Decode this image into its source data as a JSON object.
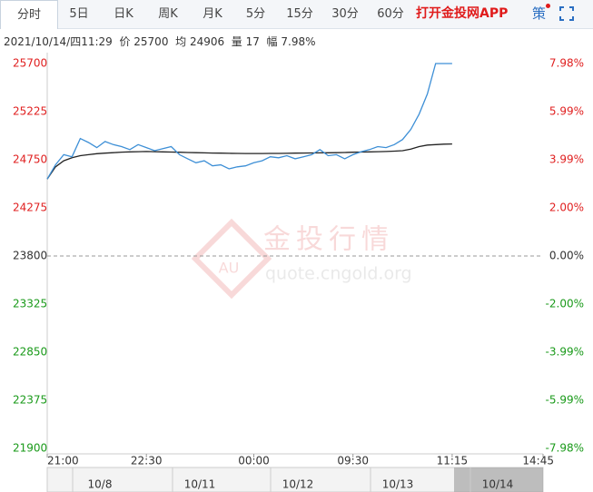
{
  "tabs": [
    "分时",
    "5日",
    "日K",
    "周K",
    "月K",
    "5分",
    "15分",
    "30分",
    "60分"
  ],
  "promo": "打开金投网APP",
  "strategy": "策",
  "info": {
    "time": "2021/10/14/四11:29",
    "price_label": "价",
    "price": 25700,
    "avg_label": "均",
    "avg": 24906,
    "vol_label": "量",
    "vol": 17,
    "amp_label": "幅",
    "amp": "7.98%"
  },
  "watermark": {
    "brand": "金投行情",
    "url": "quote.cngold.org",
    "logo": "AU"
  },
  "navigator": {
    "dates": [
      "10/8",
      "10/11",
      "10/12",
      "10/13",
      "10/14"
    ]
  },
  "chart_data": {
    "type": "line",
    "x": [
      0,
      1,
      2,
      3,
      4,
      5,
      6,
      7,
      8,
      9,
      10,
      11,
      12,
      13,
      14,
      15,
      16,
      17,
      18,
      19,
      20,
      21,
      22,
      23,
      24,
      25,
      26,
      27,
      28,
      29,
      30,
      31,
      32,
      33,
      34,
      35,
      36,
      37,
      38,
      39,
      40,
      41,
      42,
      43,
      44,
      45,
      46,
      47,
      48,
      49
    ],
    "series": [
      {
        "name": "价",
        "color": "#3d8fd6",
        "values": [
          24560,
          24700,
          24800,
          24780,
          24960,
          24920,
          24870,
          24930,
          24900,
          24880,
          24850,
          24900,
          24870,
          24840,
          24860,
          24880,
          24800,
          24760,
          24720,
          24740,
          24690,
          24700,
          24660,
          24680,
          24690,
          24720,
          24740,
          24780,
          24770,
          24790,
          24760,
          24780,
          24800,
          24850,
          24790,
          24800,
          24760,
          24800,
          24830,
          24850,
          24880,
          24870,
          24900,
          24950,
          25050,
          25200,
          25400,
          25700,
          25700,
          25700
        ]
      },
      {
        "name": "均",
        "color": "#222222",
        "values": [
          24560,
          24680,
          24740,
          24770,
          24790,
          24800,
          24810,
          24815,
          24820,
          24825,
          24828,
          24830,
          24832,
          24830,
          24828,
          24826,
          24824,
          24822,
          24820,
          24818,
          24816,
          24815,
          24814,
          24813,
          24812,
          24812,
          24812,
          24813,
          24813,
          24814,
          24815,
          24816,
          24817,
          24818,
          24819,
          24820,
          24822,
          24824,
          24826,
          24828,
          24830,
          24832,
          24835,
          24840,
          24855,
          24880,
          24895,
          24900,
          24904,
          24906
        ]
      }
    ],
    "xlim": [
      0,
      60
    ],
    "xticks": [
      {
        "value": 0,
        "label": "21:00"
      },
      {
        "value": 12,
        "label": "22:30"
      },
      {
        "value": 25,
        "label": "00:00"
      },
      {
        "value": 37,
        "label": "09:30"
      },
      {
        "value": 49,
        "label": "11:15"
      },
      {
        "value": 60,
        "label": "14:45"
      }
    ],
    "ylim": [
      21900,
      25700
    ],
    "yticks": [
      25700,
      25225,
      24750,
      24275,
      23800,
      23325,
      22850,
      22375,
      21900
    ],
    "baseline": 23800,
    "y2lim": [
      -7.98,
      7.98
    ],
    "y2ticks": [
      {
        "value": 7.98,
        "label": "7.98%"
      },
      {
        "value": 5.99,
        "label": "5.99%"
      },
      {
        "value": 3.99,
        "label": "3.99%"
      },
      {
        "value": 2.0,
        "label": "2.00%"
      },
      {
        "value": 0,
        "label": "0.00%"
      },
      {
        "value": -2.0,
        "label": "-2.00%"
      },
      {
        "value": -3.99,
        "label": "-3.99%"
      },
      {
        "value": -5.99,
        "label": "-5.99%"
      },
      {
        "value": -7.98,
        "label": "-7.98%"
      }
    ],
    "up_color": "#e02020",
    "down_color": "#1a9a1a",
    "flat_color": "#333333"
  }
}
